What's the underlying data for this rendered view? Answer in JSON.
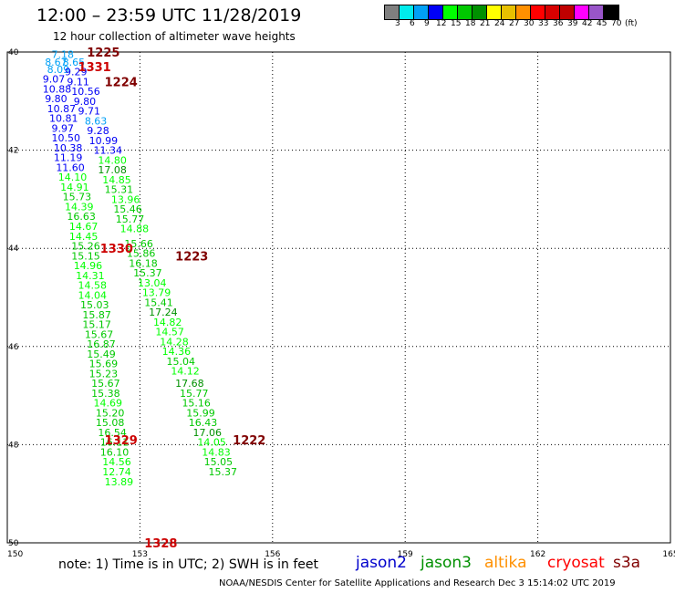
{
  "header": {
    "title": "12:00 – 23:59 UTC 11/28/2019",
    "subtitle": "12 hour collection of altimeter wave heights"
  },
  "color_scale": {
    "labels": [
      "3",
      "6",
      "9",
      "12",
      "15",
      "18",
      "21",
      "24",
      "27",
      "30",
      "33",
      "36",
      "39",
      "42",
      "45",
      "70"
    ],
    "unit": "(ft)",
    "colors": [
      "#7f7f7f",
      "#00ecec",
      "#01a0f6",
      "#0000f6",
      "#00ff00",
      "#00c800",
      "#009000",
      "#ffff00",
      "#e7c000",
      "#ff9000",
      "#ff0000",
      "#d60000",
      "#c00000",
      "#ff00ff",
      "#9955c9",
      "#000000"
    ]
  },
  "axes": {
    "x_ticks": [
      "150",
      "153",
      "156",
      "159",
      "162",
      "165"
    ],
    "y_ticks": [
      "40",
      "42",
      "44",
      "46",
      "48",
      "50"
    ]
  },
  "orbit_labels": [
    {
      "text": "1225",
      "lon": 151.8,
      "lat": 40.0,
      "color": "#800000"
    },
    {
      "text": "1331",
      "lon": 151.6,
      "lat": 40.3,
      "color": "#cc0000"
    },
    {
      "text": "1224",
      "lon": 152.2,
      "lat": 40.6,
      "color": "#800000"
    },
    {
      "text": "1330",
      "lon": 152.1,
      "lat": 44.0,
      "color": "#cc0000"
    },
    {
      "text": "1223",
      "lon": 153.8,
      "lat": 44.15,
      "color": "#800000"
    },
    {
      "text": "1329",
      "lon": 152.2,
      "lat": 47.9,
      "color": "#cc0000"
    },
    {
      "text": "1222",
      "lon": 155.1,
      "lat": 47.9,
      "color": "#800000"
    },
    {
      "text": "1328",
      "lon": 153.1,
      "lat": 50.0,
      "color": "#cc0000"
    }
  ],
  "wave_heights": [
    {
      "text": "7.18",
      "lon": 151.0,
      "lat": 40.05,
      "color": "#01a0f6"
    },
    {
      "text": "8.67",
      "lon": 150.85,
      "lat": 40.2,
      "color": "#01a0f6"
    },
    {
      "text": "8.65",
      "lon": 151.25,
      "lat": 40.2,
      "color": "#01a0f6"
    },
    {
      "text": "8.09",
      "lon": 150.9,
      "lat": 40.35,
      "color": "#01a0f6"
    },
    {
      "text": "9.29",
      "lon": 151.3,
      "lat": 40.4,
      "color": "#0000f6"
    },
    {
      "text": "9.07",
      "lon": 150.8,
      "lat": 40.55,
      "color": "#0000f6"
    },
    {
      "text": "9.11",
      "lon": 151.35,
      "lat": 40.6,
      "color": "#0000f6"
    },
    {
      "text": "10.88",
      "lon": 150.8,
      "lat": 40.75,
      "color": "#0000f6"
    },
    {
      "text": "10.56",
      "lon": 151.45,
      "lat": 40.8,
      "color": "#0000f6"
    },
    {
      "text": "9.80",
      "lon": 150.85,
      "lat": 40.95,
      "color": "#0000f6"
    },
    {
      "text": "9.80",
      "lon": 151.5,
      "lat": 41.0,
      "color": "#0000f6"
    },
    {
      "text": "10.87",
      "lon": 150.9,
      "lat": 41.15,
      "color": "#0000f6"
    },
    {
      "text": "9.71",
      "lon": 151.6,
      "lat": 41.2,
      "color": "#0000f6"
    },
    {
      "text": "10.81",
      "lon": 150.95,
      "lat": 41.35,
      "color": "#0000f6"
    },
    {
      "text": "8.63",
      "lon": 151.75,
      "lat": 41.4,
      "color": "#01a0f6"
    },
    {
      "text": "9.97",
      "lon": 151.0,
      "lat": 41.55,
      "color": "#0000f6"
    },
    {
      "text": "9.28",
      "lon": 151.8,
      "lat": 41.6,
      "color": "#0000f6"
    },
    {
      "text": "10.50",
      "lon": 151.0,
      "lat": 41.75,
      "color": "#0000f6"
    },
    {
      "text": "10.99",
      "lon": 151.85,
      "lat": 41.8,
      "color": "#0000f6"
    },
    {
      "text": "10.38",
      "lon": 151.05,
      "lat": 41.95,
      "color": "#0000f6"
    },
    {
      "text": "11.34",
      "lon": 151.95,
      "lat": 42.0,
      "color": "#0000f6"
    },
    {
      "text": "11.19",
      "lon": 151.05,
      "lat": 42.15,
      "color": "#0000f6"
    },
    {
      "text": "14.80",
      "lon": 152.05,
      "lat": 42.2,
      "color": "#00ff00"
    },
    {
      "text": "11.60",
      "lon": 151.1,
      "lat": 42.35,
      "color": "#0000f6"
    },
    {
      "text": "17.08",
      "lon": 152.05,
      "lat": 42.4,
      "color": "#009000"
    },
    {
      "text": "14.10",
      "lon": 151.15,
      "lat": 42.55,
      "color": "#00ff00"
    },
    {
      "text": "14.85",
      "lon": 152.15,
      "lat": 42.6,
      "color": "#00ff00"
    },
    {
      "text": "14.91",
      "lon": 151.2,
      "lat": 42.75,
      "color": "#00ff00"
    },
    {
      "text": "15.31",
      "lon": 152.2,
      "lat": 42.8,
      "color": "#00c800"
    },
    {
      "text": "15.73",
      "lon": 151.25,
      "lat": 42.95,
      "color": "#00c800"
    },
    {
      "text": "13.96",
      "lon": 152.35,
      "lat": 43.0,
      "color": "#00ff00"
    },
    {
      "text": "14.39",
      "lon": 151.3,
      "lat": 43.15,
      "color": "#00ff00"
    },
    {
      "text": "15.46",
      "lon": 152.4,
      "lat": 43.2,
      "color": "#00c800"
    },
    {
      "text": "16.63",
      "lon": 151.35,
      "lat": 43.35,
      "color": "#00c800"
    },
    {
      "text": "15.77",
      "lon": 152.45,
      "lat": 43.4,
      "color": "#00c800"
    },
    {
      "text": "14.67",
      "lon": 151.4,
      "lat": 43.55,
      "color": "#00ff00"
    },
    {
      "text": "14.88",
      "lon": 152.55,
      "lat": 43.6,
      "color": "#00ff00"
    },
    {
      "text": "14.45",
      "lon": 151.4,
      "lat": 43.75,
      "color": "#00ff00"
    },
    {
      "text": "15.26",
      "lon": 151.45,
      "lat": 43.95,
      "color": "#00c800"
    },
    {
      "text": "15.66",
      "lon": 152.65,
      "lat": 43.9,
      "color": "#00c800"
    },
    {
      "text": "15.15",
      "lon": 151.45,
      "lat": 44.15,
      "color": "#00c800"
    },
    {
      "text": "15.86",
      "lon": 152.7,
      "lat": 44.1,
      "color": "#00c800"
    },
    {
      "text": "14.96",
      "lon": 151.5,
      "lat": 44.35,
      "color": "#00ff00"
    },
    {
      "text": "16.18",
      "lon": 152.75,
      "lat": 44.3,
      "color": "#00c800"
    },
    {
      "text": "14.31",
      "lon": 151.55,
      "lat": 44.55,
      "color": "#00ff00"
    },
    {
      "text": "15.37",
      "lon": 152.85,
      "lat": 44.5,
      "color": "#00c800"
    },
    {
      "text": "14.58",
      "lon": 151.6,
      "lat": 44.75,
      "color": "#00ff00"
    },
    {
      "text": "13.04",
      "lon": 152.95,
      "lat": 44.7,
      "color": "#00ff00"
    },
    {
      "text": "14.04",
      "lon": 151.6,
      "lat": 44.95,
      "color": "#00ff00"
    },
    {
      "text": "13.79",
      "lon": 153.05,
      "lat": 44.9,
      "color": "#00ff00"
    },
    {
      "text": "15.03",
      "lon": 151.65,
      "lat": 45.15,
      "color": "#00c800"
    },
    {
      "text": "15.41",
      "lon": 153.1,
      "lat": 45.1,
      "color": "#00c800"
    },
    {
      "text": "15.87",
      "lon": 151.7,
      "lat": 45.35,
      "color": "#00c800"
    },
    {
      "text": "17.24",
      "lon": 153.2,
      "lat": 45.3,
      "color": "#009000"
    },
    {
      "text": "15.17",
      "lon": 151.7,
      "lat": 45.55,
      "color": "#00c800"
    },
    {
      "text": "14.82",
      "lon": 153.3,
      "lat": 45.5,
      "color": "#00ff00"
    },
    {
      "text": "15.67",
      "lon": 151.75,
      "lat": 45.75,
      "color": "#00c800"
    },
    {
      "text": "14.57",
      "lon": 153.35,
      "lat": 45.7,
      "color": "#00ff00"
    },
    {
      "text": "16.87",
      "lon": 151.8,
      "lat": 45.95,
      "color": "#00c800"
    },
    {
      "text": "14.28",
      "lon": 153.45,
      "lat": 45.9,
      "color": "#00ff00"
    },
    {
      "text": "15.49",
      "lon": 151.8,
      "lat": 46.15,
      "color": "#00c800"
    },
    {
      "text": "14.36",
      "lon": 153.5,
      "lat": 46.1,
      "color": "#00ff00"
    },
    {
      "text": "15.69",
      "lon": 151.85,
      "lat": 46.35,
      "color": "#00c800"
    },
    {
      "text": "15.04",
      "lon": 153.6,
      "lat": 46.3,
      "color": "#00c800"
    },
    {
      "text": "15.23",
      "lon": 151.85,
      "lat": 46.55,
      "color": "#00c800"
    },
    {
      "text": "14.12",
      "lon": 153.7,
      "lat": 46.5,
      "color": "#00ff00"
    },
    {
      "text": "15.67",
      "lon": 151.9,
      "lat": 46.75,
      "color": "#00c800"
    },
    {
      "text": "17.68",
      "lon": 153.8,
      "lat": 46.75,
      "color": "#009000"
    },
    {
      "text": "15.38",
      "lon": 151.9,
      "lat": 46.95,
      "color": "#00c800"
    },
    {
      "text": "15.77",
      "lon": 153.9,
      "lat": 46.95,
      "color": "#00c800"
    },
    {
      "text": "14.69",
      "lon": 151.95,
      "lat": 47.15,
      "color": "#00ff00"
    },
    {
      "text": "15.16",
      "lon": 153.95,
      "lat": 47.15,
      "color": "#00c800"
    },
    {
      "text": "15.20",
      "lon": 152.0,
      "lat": 47.35,
      "color": "#00c800"
    },
    {
      "text": "15.99",
      "lon": 154.05,
      "lat": 47.35,
      "color": "#00c800"
    },
    {
      "text": "15.08",
      "lon": 152.0,
      "lat": 47.55,
      "color": "#00c800"
    },
    {
      "text": "16.43",
      "lon": 154.1,
      "lat": 47.55,
      "color": "#00c800"
    },
    {
      "text": "16.54",
      "lon": 152.05,
      "lat": 47.75,
      "color": "#00c800"
    },
    {
      "text": "17.06",
      "lon": 154.2,
      "lat": 47.75,
      "color": "#009000"
    },
    {
      "text": "16.11",
      "lon": 152.1,
      "lat": 47.95,
      "color": "#00c800"
    },
    {
      "text": "14.05",
      "lon": 154.3,
      "lat": 47.95,
      "color": "#00ff00"
    },
    {
      "text": "16.10",
      "lon": 152.1,
      "lat": 48.15,
      "color": "#00c800"
    },
    {
      "text": "14.83",
      "lon": 154.4,
      "lat": 48.15,
      "color": "#00ff00"
    },
    {
      "text": "14.56",
      "lon": 152.15,
      "lat": 48.35,
      "color": "#00ff00"
    },
    {
      "text": "15.05",
      "lon": 154.45,
      "lat": 48.35,
      "color": "#00c800"
    },
    {
      "text": "12.74",
      "lon": 152.15,
      "lat": 48.55,
      "color": "#00ff00"
    },
    {
      "text": "15.37",
      "lon": 154.55,
      "lat": 48.55,
      "color": "#00c800"
    },
    {
      "text": "13.89",
      "lon": 152.2,
      "lat": 48.75,
      "color": "#00ff00"
    }
  ],
  "note": "note:  1) Time is in UTC;  2) SWH is in feet",
  "satellites": [
    {
      "name": "jason2",
      "color": "#0000cc"
    },
    {
      "name": "jason3",
      "color": "#009000"
    },
    {
      "name": "altika",
      "color": "#ff9000"
    },
    {
      "name": "cryosat",
      "color": "#ff0000"
    },
    {
      "name": "s3a",
      "color": "#800000"
    }
  ],
  "footer": "NOAA/NESDIS Center for Satellite Applications and Research    Dec  3 15:14:02 UTC 2019"
}
